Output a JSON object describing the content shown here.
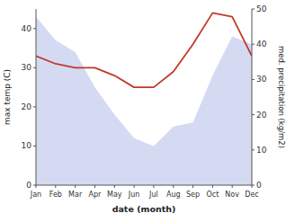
{
  "chart_data": {
    "type": "line",
    "categories": [
      "Jan",
      "Feb",
      "Mar",
      "Apr",
      "May",
      "Jun",
      "Jul",
      "Aug",
      "Sep",
      "Oct",
      "Nov",
      "Dec"
    ],
    "series": [
      {
        "type": "area",
        "color": "#b0bce8",
        "values": [
          43,
          37,
          34,
          25,
          18,
          12,
          10,
          15,
          16,
          28,
          38,
          36
        ]
      },
      {
        "type": "line",
        "color": "#c0392b",
        "values": [
          33,
          31,
          30,
          30,
          28,
          25,
          25,
          29,
          36,
          44,
          43,
          33
        ]
      }
    ],
    "xlabel": "date (month)",
    "ylabel": "max temp (C)",
    "y2label": "med. precipitation (kg/m2)",
    "ylim": [
      0,
      45
    ],
    "yticks": [
      0,
      10,
      20,
      30,
      40
    ],
    "y2lim": [
      0,
      50
    ],
    "y2ticks": [
      0,
      10,
      20,
      30,
      40,
      50
    ],
    "grid": false
  }
}
